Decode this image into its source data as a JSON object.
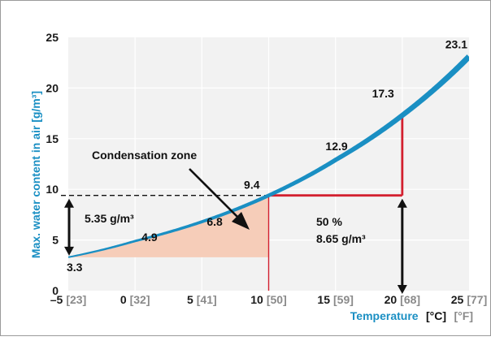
{
  "chart_data": {
    "type": "line",
    "ylabel": "Max. water content in air [g/m³]",
    "xlabel_primary": "Temperature",
    "xlabel_units_c": "[°C]",
    "xlabel_units_f": "[°F]",
    "xlim": [
      -5,
      25
    ],
    "ylim": [
      0,
      25
    ],
    "yticks": [
      "0",
      "5",
      "10",
      "15",
      "20",
      "25"
    ],
    "xticks": [
      {
        "c": "–5",
        "f": "[23]",
        "value": -5
      },
      {
        "c": "0",
        "f": "[32]",
        "value": 0
      },
      {
        "c": "5",
        "f": "[41]",
        "value": 5
      },
      {
        "c": "10",
        "f": "[50]",
        "value": 10
      },
      {
        "c": "15",
        "f": "[59]",
        "value": 15
      },
      {
        "c": "20",
        "f": "[68]",
        "value": 20
      },
      {
        "c": "25",
        "f": "[77]",
        "value": 25
      }
    ],
    "series": [
      {
        "x": [
          -5,
          0,
          5,
          10,
          15,
          20,
          25
        ],
        "y": [
          3.3,
          4.9,
          6.8,
          9.4,
          12.9,
          17.3,
          23.1
        ],
        "color": "#1a8fc3"
      }
    ],
    "point_labels": [
      {
        "text": "3.3",
        "x": -5,
        "y": 3.3
      },
      {
        "text": "4.9",
        "x": 0,
        "y": 4.9
      },
      {
        "text": "6.8",
        "x": 5,
        "y": 6.8
      },
      {
        "text": "9.4",
        "x": 10,
        "y": 9.4
      },
      {
        "text": "12.9",
        "x": 15,
        "y": 12.9
      },
      {
        "text": "17.3",
        "x": 20,
        "y": 17.3
      },
      {
        "text": "23.1",
        "x": 25,
        "y": 23.1
      }
    ],
    "annotations": {
      "condensation_zone": "Condensation zone",
      "difference_label": "5.35 g/m³",
      "rh_percent": "50 %",
      "rh_value": "8.65 g/m³"
    },
    "colors": {
      "curve": "#1a8fc3",
      "marker": "#d3202f",
      "zone_fill": "#f6cdb9",
      "plot_bg": "#f2f2f2"
    },
    "grid": true
  }
}
